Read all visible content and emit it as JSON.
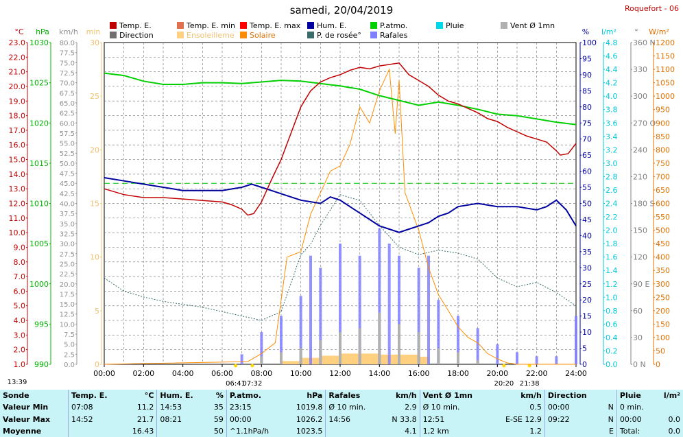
{
  "header": {
    "title": "samedi, 20/04/2019",
    "station": "Roquefort - 06"
  },
  "legend": [
    {
      "label": "Temp. E.",
      "color": "#c00000"
    },
    {
      "label": "Temp. E. min",
      "color": "#e07050"
    },
    {
      "label": "Temp. E. max",
      "color": "#ff0000"
    },
    {
      "label": "Hum. E.",
      "color": "#0000a0"
    },
    {
      "label": "P.atmo.",
      "color": "#00d000"
    },
    {
      "label": "Pluie",
      "color": "#00d8e8"
    },
    {
      "label": "Vent Ø 1mn",
      "color": "#b0b0b0"
    },
    {
      "label": "Direction",
      "color": "#707070"
    },
    {
      "label": "Ensoleilleme",
      "color": "#ffd080"
    },
    {
      "label": "Solaire",
      "color": "#ff8c00"
    },
    {
      "label": "P. de rosée°",
      "color": "#3a6a6a"
    },
    {
      "label": "Rafales",
      "color": "#8080ff"
    }
  ],
  "axes": {
    "left": [
      {
        "unit": "°C",
        "color": "#c00000",
        "ticks": [
          "23.0",
          "22.0",
          "21.0",
          "20.0",
          "19.0",
          "18.0",
          "17.0",
          "16.0",
          "15.0",
          "14.0",
          "13.0",
          "12.0",
          "11.0",
          "10.0",
          "9.0",
          "8.0",
          "7.0",
          "6.0",
          "5.0",
          "4.0",
          "3.0",
          "2.0",
          "1.0"
        ]
      },
      {
        "unit": "hPa",
        "color": "#00b000",
        "ticks": [
          "1030",
          "1025",
          "1020",
          "1015",
          "1010",
          "1005",
          "1000",
          "995",
          "990"
        ]
      },
      {
        "unit": "km/h",
        "color": "#909090",
        "ticks": [
          "80.0",
          "77.5",
          "75.0",
          "72.5",
          "70.0",
          "67.5",
          "65.0",
          "62.5",
          "60.0",
          "57.5",
          "55.0",
          "52.5",
          "50.0",
          "47.5",
          "45.0",
          "42.5",
          "40.0",
          "37.5",
          "35.0",
          "32.5",
          "30.0",
          "27.5",
          "25.0",
          "22.5",
          "20.0",
          "17.5",
          "15.0",
          "12.5",
          "10.0",
          "7.5",
          "5.0",
          "2.5",
          "0.0"
        ]
      },
      {
        "unit": "min",
        "color": "#f0c070",
        "ticks": [
          "30",
          "25",
          "20",
          "15",
          "10",
          "5",
          "0"
        ]
      }
    ],
    "right": [
      {
        "unit": "%",
        "color": "#0000a0",
        "ticks": [
          "100",
          "95",
          "90",
          "85",
          "80",
          "75",
          "70",
          "65",
          "60",
          "55",
          "50",
          "45",
          "40",
          "35",
          "30",
          "25",
          "20",
          "15",
          "10",
          "5",
          "0"
        ]
      },
      {
        "unit": "l/m²",
        "color": "#00c8d8",
        "ticks": [
          "4.8",
          "4.6",
          "4.4",
          "4.2",
          "4.0",
          "3.8",
          "3.6",
          "3.4",
          "3.2",
          "3.0",
          "2.8",
          "2.6",
          "2.4",
          "2.2",
          "2.0",
          "1.8",
          "1.6",
          "1.4",
          "1.2",
          "1.0",
          "0.8",
          "0.6",
          "0.4",
          "0.2",
          "0.0"
        ]
      },
      {
        "unit": "°",
        "color": "#808080",
        "ticks": [
          "360 N",
          "330",
          "300",
          "270 O",
          "240",
          "210",
          "180 S",
          "150",
          "120",
          "90 E",
          "60",
          "30",
          "0 N"
        ]
      },
      {
        "unit": "W/m²",
        "color": "#e07000",
        "ticks": [
          "1200",
          "1150",
          "1100",
          "1050",
          "1000",
          "950",
          "900",
          "850",
          "800",
          "750",
          "700",
          "650",
          "600",
          "550",
          "500",
          "450",
          "400",
          "350",
          "300",
          "250",
          "200",
          "150",
          "100",
          "50",
          "0"
        ]
      }
    ],
    "x_ticks": [
      "00:00",
      "02:00",
      "04:00",
      "06:00",
      "08:00",
      "10:00",
      "12:00",
      "14:00",
      "16:00",
      "18:00",
      "20:00",
      "22:00",
      "24:00"
    ]
  },
  "sun_events": [
    "13:39",
    "06:41",
    "07:32",
    "20:20",
    "21:38"
  ],
  "chart_data": {
    "type": "line",
    "x_unit": "hours",
    "series": [
      {
        "name": "Temp. E.",
        "unit": "°C",
        "x": [
          0,
          1,
          2,
          3,
          4,
          5,
          6,
          6.5,
          7,
          7.3,
          7.6,
          8,
          8.5,
          9,
          9.5,
          10,
          10.5,
          11,
          11.5,
          12,
          12.5,
          13,
          13.5,
          14,
          14.5,
          15,
          15.5,
          16,
          16.5,
          17,
          17.5,
          18,
          18.5,
          19,
          19.5,
          20,
          20.5,
          21,
          21.5,
          22,
          22.5,
          23,
          23.2,
          23.6,
          24
        ],
        "y": [
          13.0,
          12.6,
          12.4,
          12.4,
          12.3,
          12.2,
          12.1,
          11.9,
          11.6,
          11.2,
          11.3,
          12.1,
          13.6,
          15.0,
          16.8,
          18.6,
          19.7,
          20.3,
          20.6,
          20.8,
          21.1,
          21.3,
          21.2,
          21.4,
          21.5,
          21.6,
          20.8,
          20.4,
          20.0,
          19.4,
          19.0,
          18.8,
          18.5,
          18.2,
          17.8,
          17.6,
          17.2,
          16.9,
          16.6,
          16.4,
          16.2,
          15.6,
          15.3,
          15.4,
          16.1
        ]
      },
      {
        "name": "Hum. E.",
        "unit": "%",
        "x": [
          0,
          1,
          2,
          3,
          4,
          5,
          6,
          7,
          7.5,
          8,
          8.5,
          9,
          10,
          11,
          11.5,
          12,
          12.5,
          13,
          13.5,
          14,
          14.5,
          15,
          15.5,
          16,
          16.5,
          17,
          17.5,
          18,
          19,
          20,
          21,
          22,
          22.5,
          23,
          23.5,
          24
        ],
        "y": [
          58,
          57,
          56,
          55,
          54,
          54,
          54,
          55,
          56,
          55,
          54,
          53,
          51,
          50,
          52,
          51,
          49,
          47,
          45,
          43,
          42,
          41,
          42,
          43,
          44,
          46,
          47,
          49,
          50,
          49,
          49,
          48,
          49,
          51,
          48,
          43
        ]
      },
      {
        "name": "P.atmo.",
        "unit": "hPa",
        "x": [
          0,
          1,
          2,
          3,
          4,
          5,
          6,
          7,
          8,
          9,
          10,
          11,
          12,
          13,
          14,
          15,
          16,
          16.5,
          17,
          18,
          19,
          20,
          21,
          22,
          23,
          24
        ],
        "y": [
          1026.2,
          1025.9,
          1025.2,
          1024.8,
          1024.8,
          1025.0,
          1025.0,
          1024.9,
          1025.1,
          1025.3,
          1025.2,
          1024.9,
          1024.6,
          1024.2,
          1023.4,
          1022.8,
          1022.2,
          1022.4,
          1022.6,
          1022.2,
          1021.7,
          1021.1,
          1020.9,
          1020.5,
          1020.1,
          1019.8
        ]
      },
      {
        "name": "P. de rosée°",
        "unit": "°C",
        "x": [
          0,
          1,
          2,
          3,
          4,
          5,
          6,
          7,
          8,
          9,
          10,
          10.5,
          11,
          12,
          13,
          14,
          15,
          16,
          17,
          18,
          19,
          20,
          21,
          22,
          23,
          24
        ],
        "y": [
          6.9,
          6.0,
          5.6,
          5.3,
          5.1,
          4.9,
          4.6,
          4.3,
          4.0,
          4.6,
          8.5,
          9.2,
          10.5,
          12.6,
          12.2,
          10.5,
          9.0,
          8.5,
          8.8,
          8.6,
          8.2,
          6.9,
          6.3,
          6.6,
          5.9,
          5.0
        ]
      },
      {
        "name": "Solaire",
        "unit": "W/m²",
        "x": [
          0,
          7.3,
          8,
          8.7,
          9.3,
          10,
          10.5,
          11,
          11.5,
          12,
          12.5,
          13,
          13.5,
          14,
          14.5,
          14.8,
          15,
          15.3,
          16,
          16.5,
          17,
          17.5,
          18,
          18.5,
          19,
          19.5,
          20,
          20.5,
          21,
          24
        ],
        "y": [
          0,
          10,
          40,
          80,
          400,
          420,
          560,
          640,
          720,
          740,
          820,
          960,
          900,
          1020,
          1100,
          860,
          1060,
          640,
          500,
          360,
          260,
          200,
          140,
          100,
          80,
          40,
          20,
          5,
          0,
          0
        ]
      },
      {
        "name": "Rafales",
        "unit": "km/h",
        "x": [
          0,
          6,
          7,
          8,
          9,
          10,
          10.5,
          11,
          12,
          13,
          14,
          14.5,
          15,
          16,
          16.5,
          17,
          18,
          19,
          20,
          21,
          22,
          23,
          24
        ],
        "y": [
          0,
          0,
          2.5,
          8,
          12,
          17,
          27,
          24,
          30,
          27,
          33.8,
          30,
          27,
          24,
          27,
          16,
          12,
          9,
          5,
          3,
          2,
          2,
          12
        ]
      },
      {
        "name": "Vent Ø 1mn",
        "unit": "km/h",
        "x": [
          0,
          7,
          8,
          9,
          10,
          11,
          12,
          13,
          14,
          15,
          16,
          17,
          18,
          19,
          20,
          24
        ],
        "y": [
          0,
          0,
          2,
          3,
          4,
          6,
          8,
          9,
          12.9,
          10,
          8,
          4,
          3,
          1,
          0,
          0
        ]
      },
      {
        "name": "Ensoleilleme",
        "unit": "min",
        "x": [
          0,
          8,
          9,
          10,
          11,
          12,
          13,
          14,
          15,
          16,
          16.5,
          24
        ],
        "y": [
          0,
          0,
          0.3,
          0.6,
          0.8,
          1.0,
          1.0,
          0.9,
          0.9,
          0.7,
          0,
          0
        ]
      }
    ],
    "reference_lines": [
      {
        "name": "P.atmo. level",
        "unit": "hPa",
        "y": 1012.5
      }
    ],
    "xlim": [
      0,
      24
    ],
    "ylim_temp": [
      1,
      23
    ],
    "ylim_pressure": [
      990,
      1030
    ],
    "ylim_humidity": [
      0,
      100
    ],
    "ylim_solar": [
      0,
      1200
    ],
    "ylim_wind": [
      0,
      80
    ],
    "ylim_sun": [
      0,
      30
    ],
    "grid": true
  },
  "summary": {
    "columns": [
      {
        "title": "Sonde",
        "unit": ""
      },
      {
        "title": "Temp. E.",
        "unit": "°C"
      },
      {
        "title": "Hum. E.",
        "unit": "%"
      },
      {
        "title": "P.atmo.",
        "unit": "hPa"
      },
      {
        "title": "Rafales",
        "unit": "km/h"
      },
      {
        "title": "Vent Ø 1mn",
        "unit": "km/h"
      },
      {
        "title": "Direction",
        "unit": ""
      },
      {
        "title": "Pluie",
        "unit": "l/m²"
      }
    ],
    "rows": [
      {
        "label": "Valeur Min",
        "cells": [
          [
            "07:08",
            "11.2"
          ],
          [
            "14:53",
            "35"
          ],
          [
            "23:15",
            "1019.8"
          ],
          [
            "Ø 10 min.",
            "2.9"
          ],
          [
            "Ø 10 min.",
            "0.5"
          ],
          [
            "00:00",
            "N"
          ],
          [
            "0 min.",
            ""
          ]
        ]
      },
      {
        "label": "Valeur Max",
        "cells": [
          [
            "14:52",
            "21.7"
          ],
          [
            "08:21",
            "59"
          ],
          [
            "00:00",
            "1026.2"
          ],
          [
            "14:56",
            "N 33.8"
          ],
          [
            "12:51",
            "E-SE 12.9"
          ],
          [
            "09:22",
            "N"
          ],
          [
            "00:00",
            "0.0"
          ]
        ]
      },
      {
        "label": "Moyenne",
        "cells": [
          [
            "",
            "16.43"
          ],
          [
            "",
            "50"
          ],
          [
            "^1.1hPa/h",
            "1023.5"
          ],
          [
            "",
            "4.1"
          ],
          [
            "1,2 km",
            "1.2"
          ],
          [
            "",
            "E"
          ],
          [
            "Total:",
            "0.0"
          ]
        ]
      }
    ]
  }
}
